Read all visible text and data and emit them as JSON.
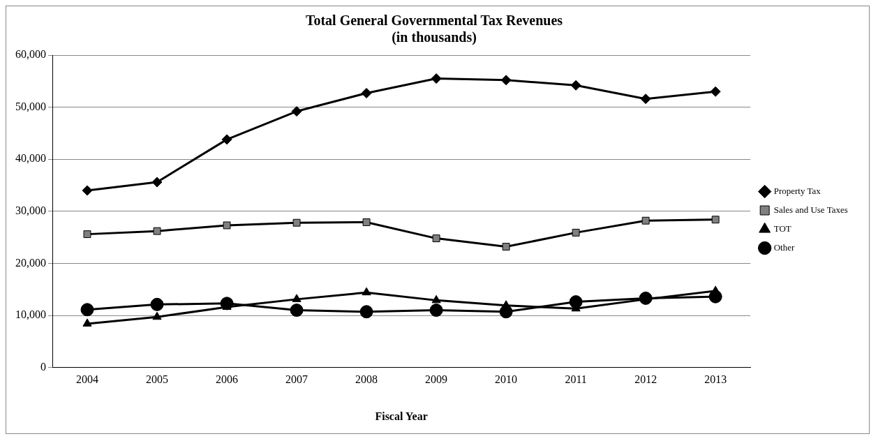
{
  "chart_data": {
    "type": "line",
    "title": [
      "Total General Governmental Tax Revenues",
      "(in thousands)"
    ],
    "xlabel": "Fiscal Year",
    "categories": [
      "2004",
      "2005",
      "2006",
      "2007",
      "2008",
      "2009",
      "2010",
      "2011",
      "2012",
      "2013"
    ],
    "series": [
      {
        "name": "Property Tax",
        "color": "#000000",
        "marker": "diamond",
        "values": [
          34000,
          35600,
          43800,
          49200,
          52700,
          55500,
          55200,
          54200,
          51600,
          53000
        ]
      },
      {
        "name": "Sales and Use Taxes",
        "color": "#000000",
        "marker": "square",
        "values": [
          25600,
          26200,
          27300,
          27800,
          27900,
          24800,
          23200,
          25900,
          28200,
          28400
        ]
      },
      {
        "name": "TOT",
        "color": "#000000",
        "marker": "triangle",
        "values": [
          8400,
          9700,
          11600,
          13100,
          14400,
          12900,
          11900,
          11300,
          13100,
          14700
        ]
      },
      {
        "name": "Other",
        "color": "#000000",
        "marker": "circle",
        "values": [
          11100,
          12100,
          12300,
          11000,
          10700,
          11000,
          10700,
          12600,
          13300,
          13600
        ]
      }
    ],
    "ylim": [
      0,
      60000
    ],
    "yticks": [
      {
        "value": 0,
        "label": "0"
      },
      {
        "value": 10000,
        "label": "10,000"
      },
      {
        "value": 20000,
        "label": "20,000"
      },
      {
        "value": 30000,
        "label": "30,000"
      },
      {
        "value": 40000,
        "label": "40,000"
      },
      {
        "value": 50000,
        "label": "50,000"
      },
      {
        "value": 60000,
        "label": "60,000"
      }
    ],
    "grid": "y",
    "legend": "right",
    "line_style": "solid"
  }
}
